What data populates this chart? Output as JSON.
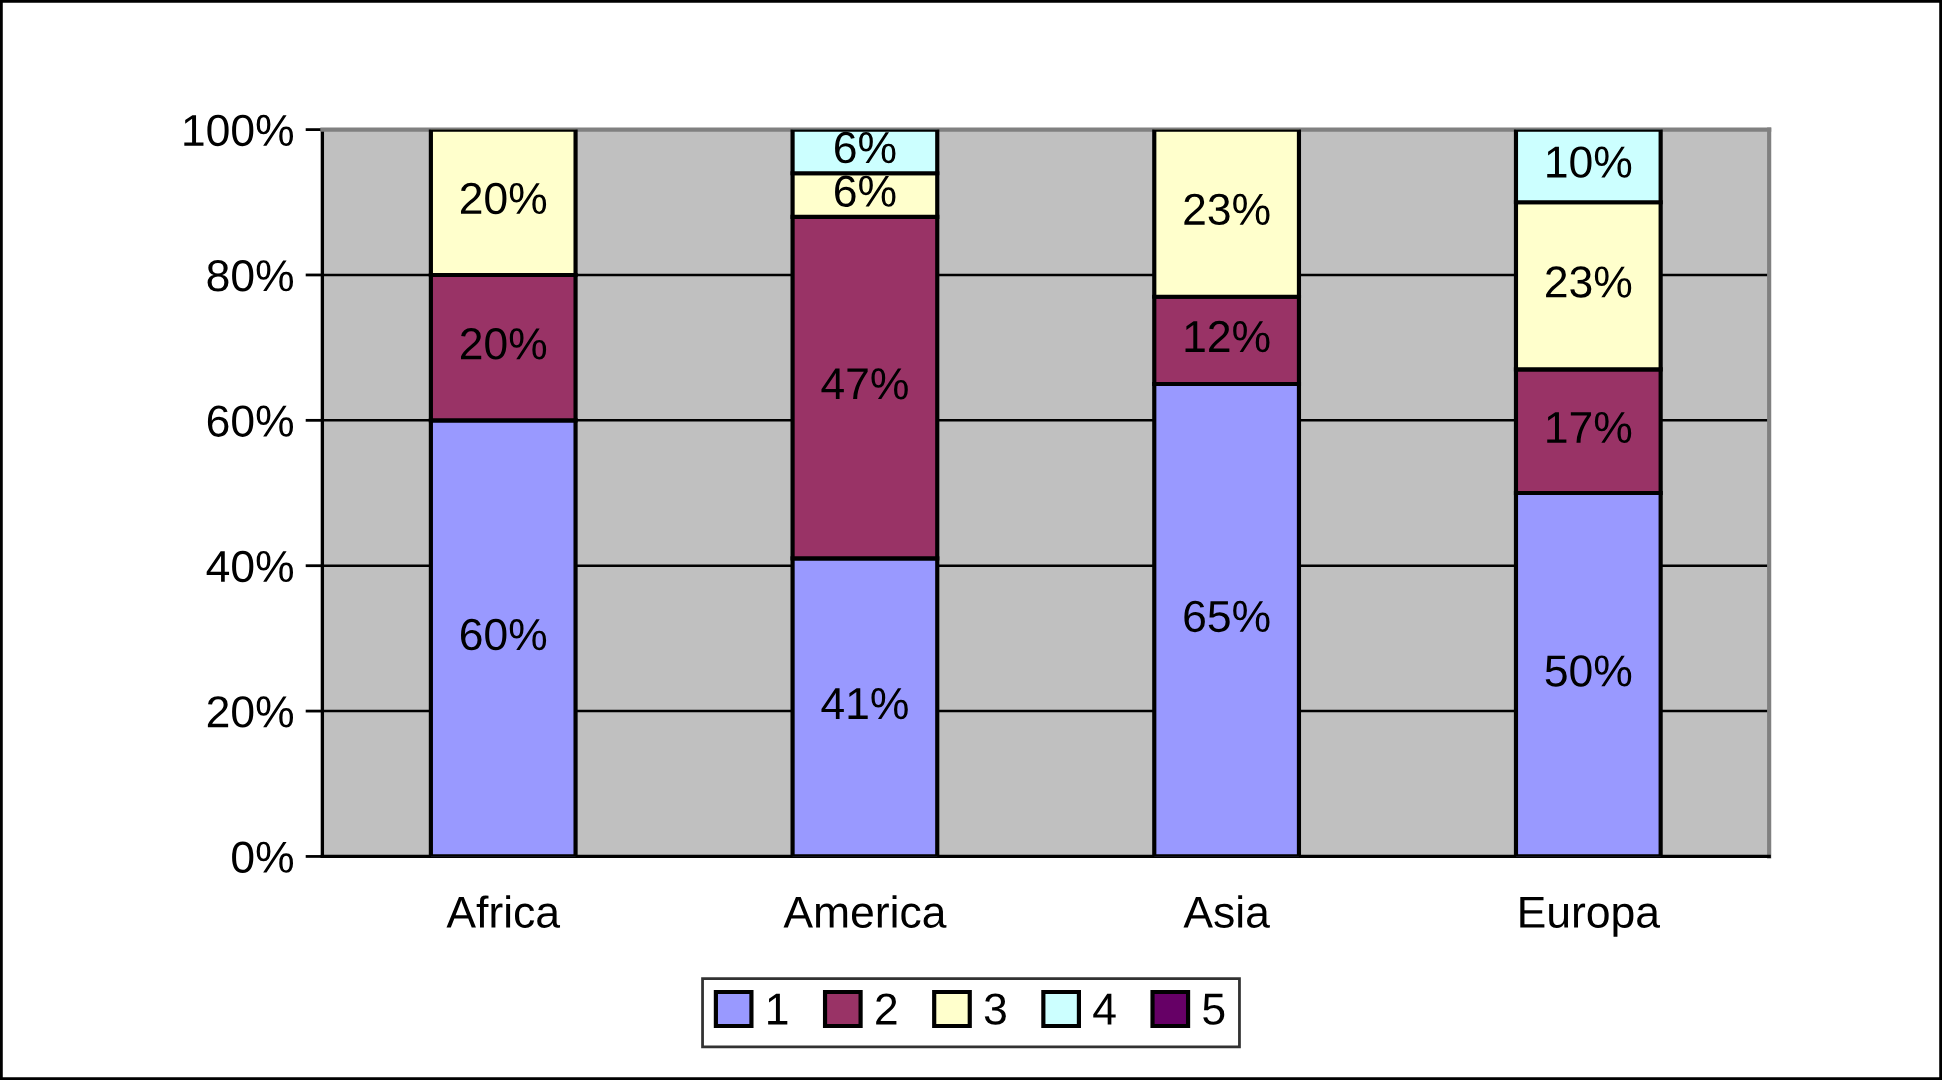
{
  "chart_data": {
    "type": "bar",
    "stacked": true,
    "categories": [
      "Africa",
      "America",
      "Asia",
      "Europa"
    ],
    "series": [
      {
        "name": "1",
        "color": "#9999ff",
        "values": [
          60,
          41,
          65,
          50
        ],
        "value_labels": [
          "60%",
          "41%",
          "65%",
          "50%"
        ]
      },
      {
        "name": "2",
        "color": "#993366",
        "values": [
          20,
          47,
          12,
          17
        ],
        "value_labels": [
          "20%",
          "47%",
          "12%",
          "17%"
        ]
      },
      {
        "name": "3",
        "color": "#ffffcc",
        "values": [
          20,
          6,
          23,
          23
        ],
        "value_labels": [
          "20%",
          "6%",
          "23%",
          "23%"
        ]
      },
      {
        "name": "4",
        "color": "#ccffff",
        "values": [
          null,
          6,
          null,
          10
        ],
        "value_labels": [
          null,
          "6%",
          null,
          "10%"
        ]
      },
      {
        "name": "5",
        "color": "#660066",
        "values": [
          null,
          null,
          null,
          null
        ]
      }
    ],
    "ylim": [
      0,
      100
    ],
    "yticks": [
      {
        "value": 0,
        "label": "0%"
      },
      {
        "value": 20,
        "label": "20%"
      },
      {
        "value": 40,
        "label": "40%"
      },
      {
        "value": 60,
        "label": "60%"
      },
      {
        "value": 80,
        "label": "80%"
      },
      {
        "value": 100,
        "label": "100%"
      }
    ],
    "grid": "y",
    "legend": "bottom"
  }
}
